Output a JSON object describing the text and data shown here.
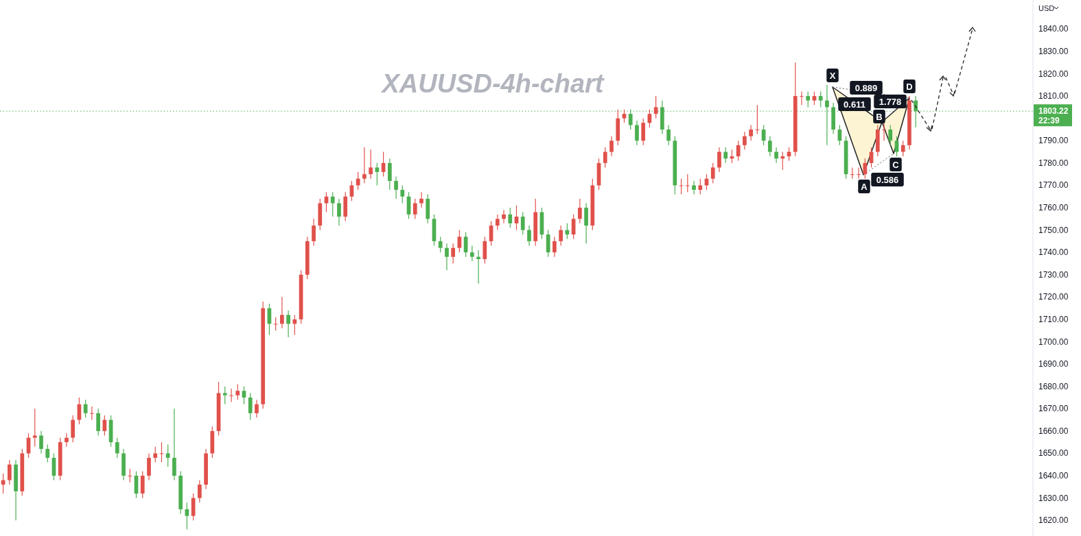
{
  "chart_data": {
    "type": "candlestick",
    "title": "XAUUSD-4h-chart",
    "ylabel": "USD",
    "categories": [
      null,
      null,
      null,
      null,
      null,
      null,
      null,
      null,
      null,
      null,
      null,
      null,
      null,
      null,
      null,
      null,
      null,
      null,
      null,
      null,
      null,
      null,
      null,
      null,
      null,
      null,
      null,
      null,
      null,
      null,
      null,
      null,
      null,
      null,
      null,
      null,
      null,
      null,
      null,
      null,
      null,
      null,
      null,
      null,
      null,
      null,
      null,
      null,
      null,
      null,
      null,
      null,
      null,
      null,
      null,
      null,
      null,
      null,
      null,
      null,
      null,
      null,
      null,
      null,
      null,
      null,
      null,
      null,
      null,
      null,
      null,
      null,
      null,
      null,
      null,
      null,
      null,
      null,
      null,
      null,
      null,
      null,
      null,
      null,
      null,
      null,
      null,
      null,
      null,
      null,
      null,
      null,
      null,
      null,
      null,
      null,
      null,
      null,
      null,
      null,
      null,
      null,
      null,
      null,
      null,
      null,
      null,
      null,
      null,
      null,
      null,
      null,
      null,
      null,
      null,
      null,
      null,
      null,
      null,
      null,
      null,
      null,
      null,
      null,
      null,
      null,
      null,
      null,
      null,
      null,
      null,
      null,
      null,
      null,
      null,
      null,
      null,
      null,
      null,
      null,
      null,
      null,
      null,
      null,
      null,
      null,
      null,
      null,
      null,
      null,
      null,
      null,
      null,
      null,
      null,
      null,
      null,
      null,
      null,
      null,
      null,
      null,
      null
    ],
    "ohlc": [
      [
        1636,
        1641,
        1632,
        1638
      ],
      [
        1638,
        1647,
        1636,
        1645
      ],
      [
        1645,
        1647,
        1620,
        1633
      ],
      [
        1633,
        1652,
        1631,
        1650
      ],
      [
        1650,
        1659,
        1648,
        1657
      ],
      [
        1657,
        1670,
        1653,
        1658
      ],
      [
        1658,
        1660,
        1650,
        1652
      ],
      [
        1652,
        1654,
        1646,
        1648
      ],
      [
        1648,
        1650,
        1638,
        1640
      ],
      [
        1640,
        1657,
        1638,
        1655
      ],
      [
        1655,
        1659,
        1653,
        1657
      ],
      [
        1657,
        1667,
        1655,
        1665
      ],
      [
        1665,
        1675,
        1663,
        1672
      ],
      [
        1672,
        1674,
        1666,
        1668
      ],
      [
        1668,
        1671,
        1665,
        1668
      ],
      [
        1668,
        1670,
        1658,
        1660
      ],
      [
        1660,
        1667,
        1658,
        1665
      ],
      [
        1665,
        1667,
        1653,
        1655
      ],
      [
        1655,
        1657,
        1648,
        1650
      ],
      [
        1650,
        1652,
        1638,
        1640
      ],
      [
        1640,
        1643,
        1637,
        1640
      ],
      [
        1640,
        1642,
        1630,
        1632
      ],
      [
        1632,
        1642,
        1630,
        1640
      ],
      [
        1640,
        1650,
        1638,
        1648
      ],
      [
        1648,
        1653,
        1646,
        1650
      ],
      [
        1650,
        1655,
        1646,
        1650
      ],
      [
        1650,
        1654,
        1644,
        1648
      ],
      [
        1648,
        1670,
        1638,
        1640
      ],
      [
        1640,
        1642,
        1623,
        1625
      ],
      [
        1625,
        1628,
        1616,
        1622
      ],
      [
        1622,
        1632,
        1620,
        1630
      ],
      [
        1630,
        1638,
        1628,
        1636
      ],
      [
        1636,
        1652,
        1634,
        1650
      ],
      [
        1650,
        1662,
        1648,
        1660
      ],
      [
        1660,
        1682,
        1658,
        1677
      ],
      [
        1677,
        1680,
        1672,
        1676
      ],
      [
        1676,
        1679,
        1673,
        1676
      ],
      [
        1676,
        1681,
        1674,
        1678
      ],
      [
        1678,
        1680,
        1672,
        1675
      ],
      [
        1675,
        1677,
        1665,
        1668
      ],
      [
        1668,
        1674,
        1666,
        1672
      ],
      [
        1672,
        1718,
        1670,
        1715
      ],
      [
        1715,
        1717,
        1703,
        1708
      ],
      [
        1708,
        1711,
        1705,
        1708
      ],
      [
        1708,
        1720,
        1706,
        1712
      ],
      [
        1712,
        1714,
        1702,
        1708
      ],
      [
        1708,
        1712,
        1703,
        1710
      ],
      [
        1710,
        1732,
        1708,
        1730
      ],
      [
        1730,
        1747,
        1728,
        1745
      ],
      [
        1745,
        1755,
        1743,
        1752
      ],
      [
        1752,
        1764,
        1750,
        1762
      ],
      [
        1762,
        1767,
        1758,
        1765
      ],
      [
        1765,
        1767,
        1756,
        1762
      ],
      [
        1762,
        1764,
        1752,
        1756
      ],
      [
        1756,
        1767,
        1754,
        1765
      ],
      [
        1765,
        1772,
        1763,
        1770
      ],
      [
        1770,
        1776,
        1768,
        1773
      ],
      [
        1773,
        1787,
        1771,
        1775
      ],
      [
        1775,
        1786,
        1773,
        1778
      ],
      [
        1778,
        1780,
        1770,
        1776
      ],
      [
        1776,
        1785,
        1774,
        1780
      ],
      [
        1780,
        1782,
        1768,
        1772
      ],
      [
        1772,
        1774,
        1764,
        1768
      ],
      [
        1768,
        1770,
        1762,
        1765
      ],
      [
        1765,
        1767,
        1755,
        1757
      ],
      [
        1757,
        1764,
        1755,
        1762
      ],
      [
        1762,
        1767,
        1760,
        1764
      ],
      [
        1764,
        1766,
        1753,
        1755
      ],
      [
        1755,
        1757,
        1743,
        1745
      ],
      [
        1745,
        1747,
        1740,
        1742
      ],
      [
        1742,
        1744,
        1732,
        1738
      ],
      [
        1738,
        1744,
        1735,
        1742
      ],
      [
        1742,
        1750,
        1740,
        1747
      ],
      [
        1747,
        1749,
        1738,
        1740
      ],
      [
        1740,
        1743,
        1736,
        1738
      ],
      [
        1738,
        1741,
        1726,
        1737
      ],
      [
        1737,
        1747,
        1735,
        1745
      ],
      [
        1745,
        1754,
        1743,
        1752
      ],
      [
        1752,
        1757,
        1750,
        1755
      ],
      [
        1755,
        1759,
        1753,
        1757
      ],
      [
        1757,
        1760,
        1751,
        1753
      ],
      [
        1753,
        1761,
        1750,
        1756
      ],
      [
        1756,
        1758,
        1748,
        1750
      ],
      [
        1750,
        1752,
        1743,
        1745
      ],
      [
        1745,
        1764,
        1743,
        1758
      ],
      [
        1758,
        1760,
        1746,
        1748
      ],
      [
        1748,
        1750,
        1738,
        1740
      ],
      [
        1740,
        1747,
        1738,
        1745
      ],
      [
        1745,
        1752,
        1743,
        1750
      ],
      [
        1750,
        1753,
        1746,
        1748
      ],
      [
        1748,
        1757,
        1746,
        1755
      ],
      [
        1755,
        1764,
        1753,
        1760
      ],
      [
        1760,
        1762,
        1744,
        1752
      ],
      [
        1752,
        1773,
        1750,
        1770
      ],
      [
        1770,
        1782,
        1768,
        1780
      ],
      [
        1780,
        1787,
        1778,
        1785
      ],
      [
        1785,
        1792,
        1783,
        1790
      ],
      [
        1790,
        1804,
        1788,
        1800
      ],
      [
        1800,
        1804,
        1798,
        1802
      ],
      [
        1802,
        1804,
        1795,
        1797
      ],
      [
        1797,
        1799,
        1788,
        1790
      ],
      [
        1790,
        1800,
        1788,
        1798
      ],
      [
        1798,
        1804,
        1796,
        1802
      ],
      [
        1802,
        1810,
        1800,
        1805
      ],
      [
        1805,
        1808,
        1793,
        1795
      ],
      [
        1795,
        1797,
        1788,
        1790
      ],
      [
        1790,
        1792,
        1766,
        1770
      ],
      [
        1770,
        1773,
        1766,
        1770
      ],
      [
        1770,
        1775,
        1767,
        1770
      ],
      [
        1770,
        1772,
        1766,
        1768
      ],
      [
        1768,
        1773,
        1766,
        1770
      ],
      [
        1770,
        1775,
        1768,
        1773
      ],
      [
        1773,
        1780,
        1771,
        1778
      ],
      [
        1778,
        1787,
        1776,
        1785
      ],
      [
        1785,
        1787,
        1780,
        1782
      ],
      [
        1782,
        1786,
        1780,
        1783
      ],
      [
        1783,
        1790,
        1781,
        1788
      ],
      [
        1788,
        1794,
        1786,
        1792
      ],
      [
        1792,
        1797,
        1790,
        1795
      ],
      [
        1795,
        1806,
        1793,
        1795
      ],
      [
        1795,
        1797,
        1788,
        1790
      ],
      [
        1790,
        1792,
        1783,
        1785
      ],
      [
        1785,
        1787,
        1780,
        1782
      ],
      [
        1782,
        1785,
        1777,
        1783
      ],
      [
        1783,
        1787,
        1781,
        1785
      ],
      [
        1785,
        1825,
        1783,
        1810
      ],
      [
        1810,
        1812,
        1806,
        1810
      ],
      [
        1810,
        1812,
        1805,
        1808
      ],
      [
        1808,
        1812,
        1806,
        1810
      ],
      [
        1810,
        1812,
        1805,
        1808
      ],
      [
        1808,
        1815,
        1788,
        1805
      ],
      [
        1805,
        1807,
        1793,
        1795
      ],
      [
        1795,
        1797,
        1788,
        1790
      ],
      [
        1790,
        1792,
        1773,
        1775
      ],
      [
        1775,
        1778,
        1773,
        1775
      ],
      [
        1775,
        1778,
        1773,
        1775
      ],
      [
        1775,
        1782,
        1773,
        1780
      ],
      [
        1780,
        1787,
        1778,
        1785
      ],
      [
        1785,
        1797,
        1783,
        1795
      ],
      [
        1795,
        1798,
        1790,
        1795
      ],
      [
        1795,
        1797,
        1788,
        1790
      ],
      [
        1790,
        1792,
        1783,
        1785
      ],
      [
        1785,
        1790,
        1783,
        1788
      ],
      [
        1788,
        1810,
        1786,
        1808
      ],
      [
        1808,
        1810,
        1796,
        1803.22
      ],
      null,
      null,
      null,
      null,
      null,
      null,
      null,
      null,
      null,
      null,
      null,
      null,
      null,
      null,
      null,
      null,
      null,
      null
    ],
    "ylim": [
      1613,
      1853
    ],
    "yticks": [
      {
        "value": 1620,
        "label": "1620.00"
      },
      {
        "value": 1630,
        "label": "1630.00"
      },
      {
        "value": 1640,
        "label": "1640.00"
      },
      {
        "value": 1650,
        "label": "1650.00"
      },
      {
        "value": 1660,
        "label": "1660.00"
      },
      {
        "value": 1670,
        "label": "1670.00"
      },
      {
        "value": 1680,
        "label": "1680.00"
      },
      {
        "value": 1690,
        "label": "1690.00"
      },
      {
        "value": 1700,
        "label": "1700.00"
      },
      {
        "value": 1710,
        "label": "1710.00"
      },
      {
        "value": 1720,
        "label": "1720.00"
      },
      {
        "value": 1730,
        "label": "1730.00"
      },
      {
        "value": 1740,
        "label": "1740.00"
      },
      {
        "value": 1750,
        "label": "1750.00"
      },
      {
        "value": 1760,
        "label": "1760.00"
      },
      {
        "value": 1770,
        "label": "1770.00"
      },
      {
        "value": 1780,
        "label": "1780.00"
      },
      {
        "value": 1790,
        "label": "1790.00"
      },
      {
        "value": 1810,
        "label": "1810.00"
      },
      {
        "value": 1820,
        "label": "1820.00"
      },
      {
        "value": 1830,
        "label": "1830.00"
      },
      {
        "value": 1840,
        "label": "1840.00"
      }
    ],
    "ref_lines": [
      {
        "axis": "y",
        "value": 1803.22,
        "label": "1803.22",
        "color": "#4caf50",
        "line_style": "dotted"
      }
    ],
    "annotations": [
      "X",
      "A",
      "B",
      "C",
      "D",
      "0.611",
      "0.889",
      "0.586",
      "1.778",
      "22:39"
    ],
    "grid": false
  }
}
